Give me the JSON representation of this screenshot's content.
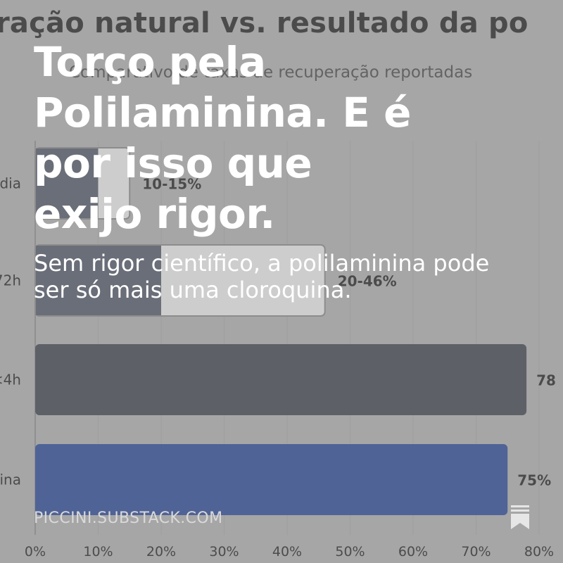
{
  "chart_data": {
    "type": "bar",
    "orientation": "horizontal",
    "title": "ração natural vs. resultado da po",
    "subtitle": "Comparativo de taxas de recuperação reportadas",
    "categories": [
      "dia",
      "72h",
      "<4h",
      "ina"
    ],
    "bars": [
      {
        "category": "dia",
        "low": 10,
        "high": 15,
        "label": "10-15%",
        "color": "#e2e2e2"
      },
      {
        "category": "72h",
        "low": 20,
        "high": 46,
        "label": "20-46%",
        "color": "#e2e2e2"
      },
      {
        "category": "<4h",
        "value": 78,
        "label": "78",
        "color": "#363c46"
      },
      {
        "category": "ina",
        "value": 75,
        "label": "75%",
        "color": "#23408e"
      }
    ],
    "xticks": [
      "0%",
      "10%",
      "20%",
      "30%",
      "40%",
      "50%",
      "60%",
      "70%",
      "80%"
    ],
    "xlim": [
      0,
      80
    ],
    "grid": true
  },
  "overlay": {
    "headline": "Torço pela Polilaminina. E é por isso que exijo rigor.",
    "subheadline": "Sem rigor científico, a polilaminina pode ser só mais uma cloroquina.",
    "footer": "PICCINI.SUBSTACK.COM",
    "bookmark_icon": "bookmark-icon"
  },
  "colors": {
    "overlay_tint": "#a6a6a6",
    "text": "#ffffff",
    "range_dark": "#4b5160",
    "range_light": "#e2e2e2"
  }
}
